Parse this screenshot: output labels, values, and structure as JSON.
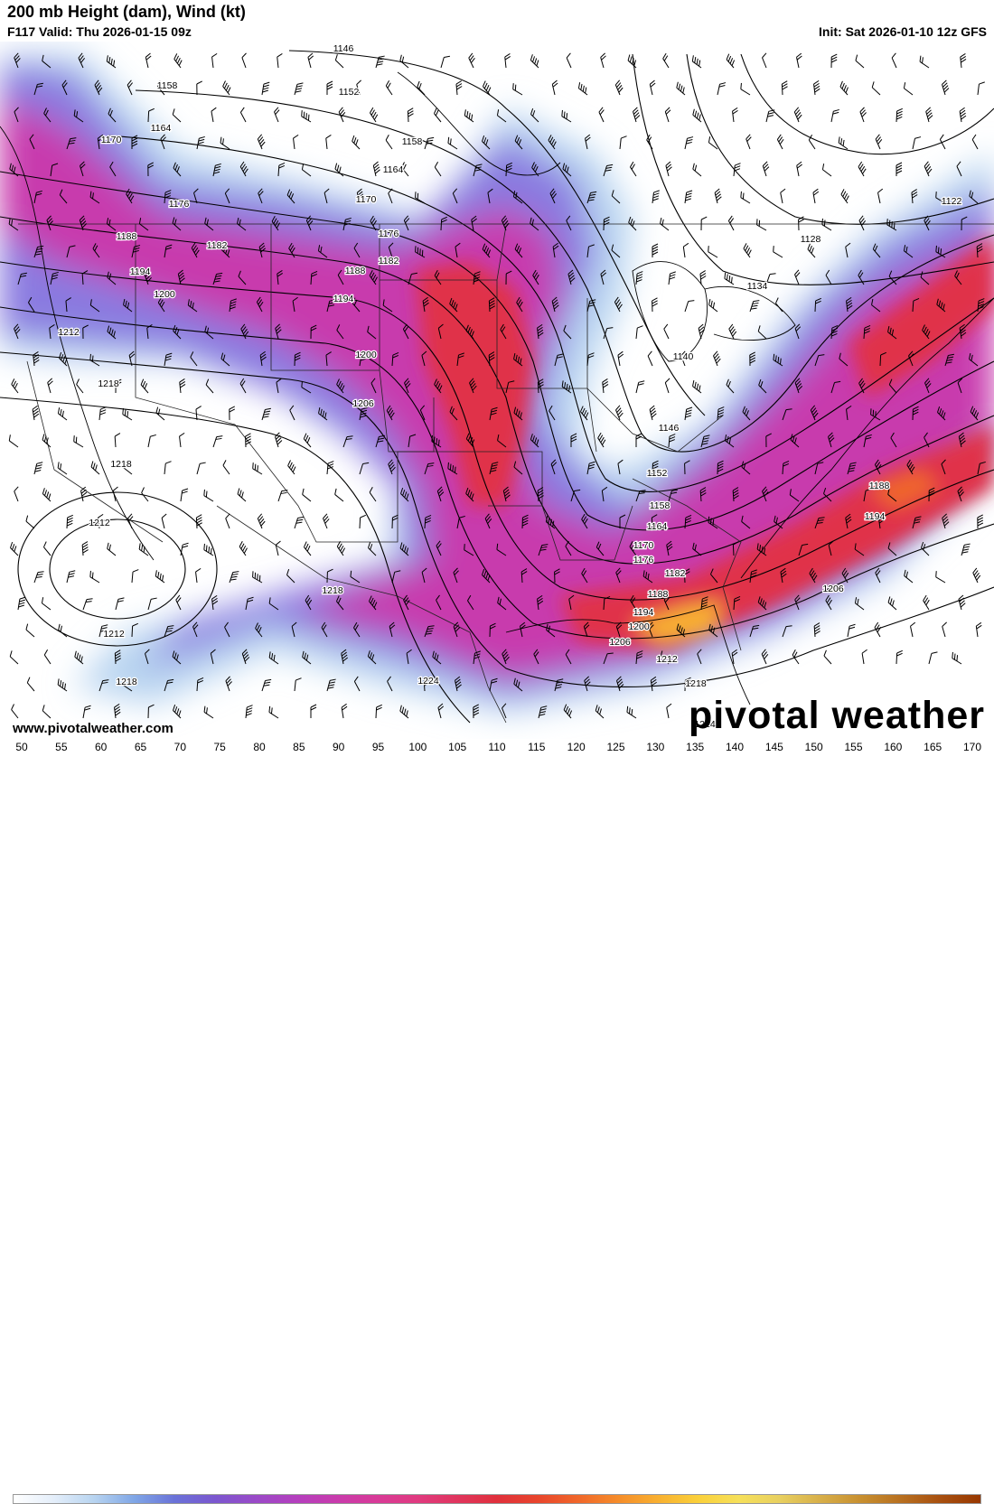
{
  "header": {
    "title": "200 mb Height (dam), Wind (kt)",
    "valid": "F117 Valid: Thu 2026-01-15 09z",
    "init": "Init: Sat 2026-01-10 12z GFS"
  },
  "footer": {
    "website": "www.pivotalweather.com",
    "brand": "pivotal weather"
  },
  "colorbar": {
    "labels": [
      "50",
      "55",
      "60",
      "65",
      "70",
      "75",
      "80",
      "85",
      "90",
      "95",
      "100",
      "105",
      "110",
      "115",
      "120",
      "125",
      "130",
      "135",
      "140",
      "145",
      "150",
      "155",
      "160",
      "165",
      "170"
    ],
    "colors": [
      "#ffffff",
      "#e4eefa",
      "#b8d4f0",
      "#7fa6e6",
      "#6a72d8",
      "#7b57cf",
      "#9a4ac8",
      "#b43fbe",
      "#c83bad",
      "#d83a98",
      "#e03a80",
      "#e0355e",
      "#e0303c",
      "#e8452c",
      "#f0662a",
      "#f58c2a",
      "#f8b030",
      "#fad03a",
      "#f6e05a",
      "#e8d060",
      "#d8b04a",
      "#c89030",
      "#b87020",
      "#a85010",
      "#983800"
    ]
  },
  "map": {
    "height_contour_labels": [
      "1146",
      "1152",
      "1158",
      "1164",
      "1170",
      "1176",
      "1182",
      "1188",
      "1194",
      "1200",
      "1206",
      "1212",
      "1218",
      "1224",
      "1122",
      "1128",
      "1134",
      "1140"
    ]
  }
}
